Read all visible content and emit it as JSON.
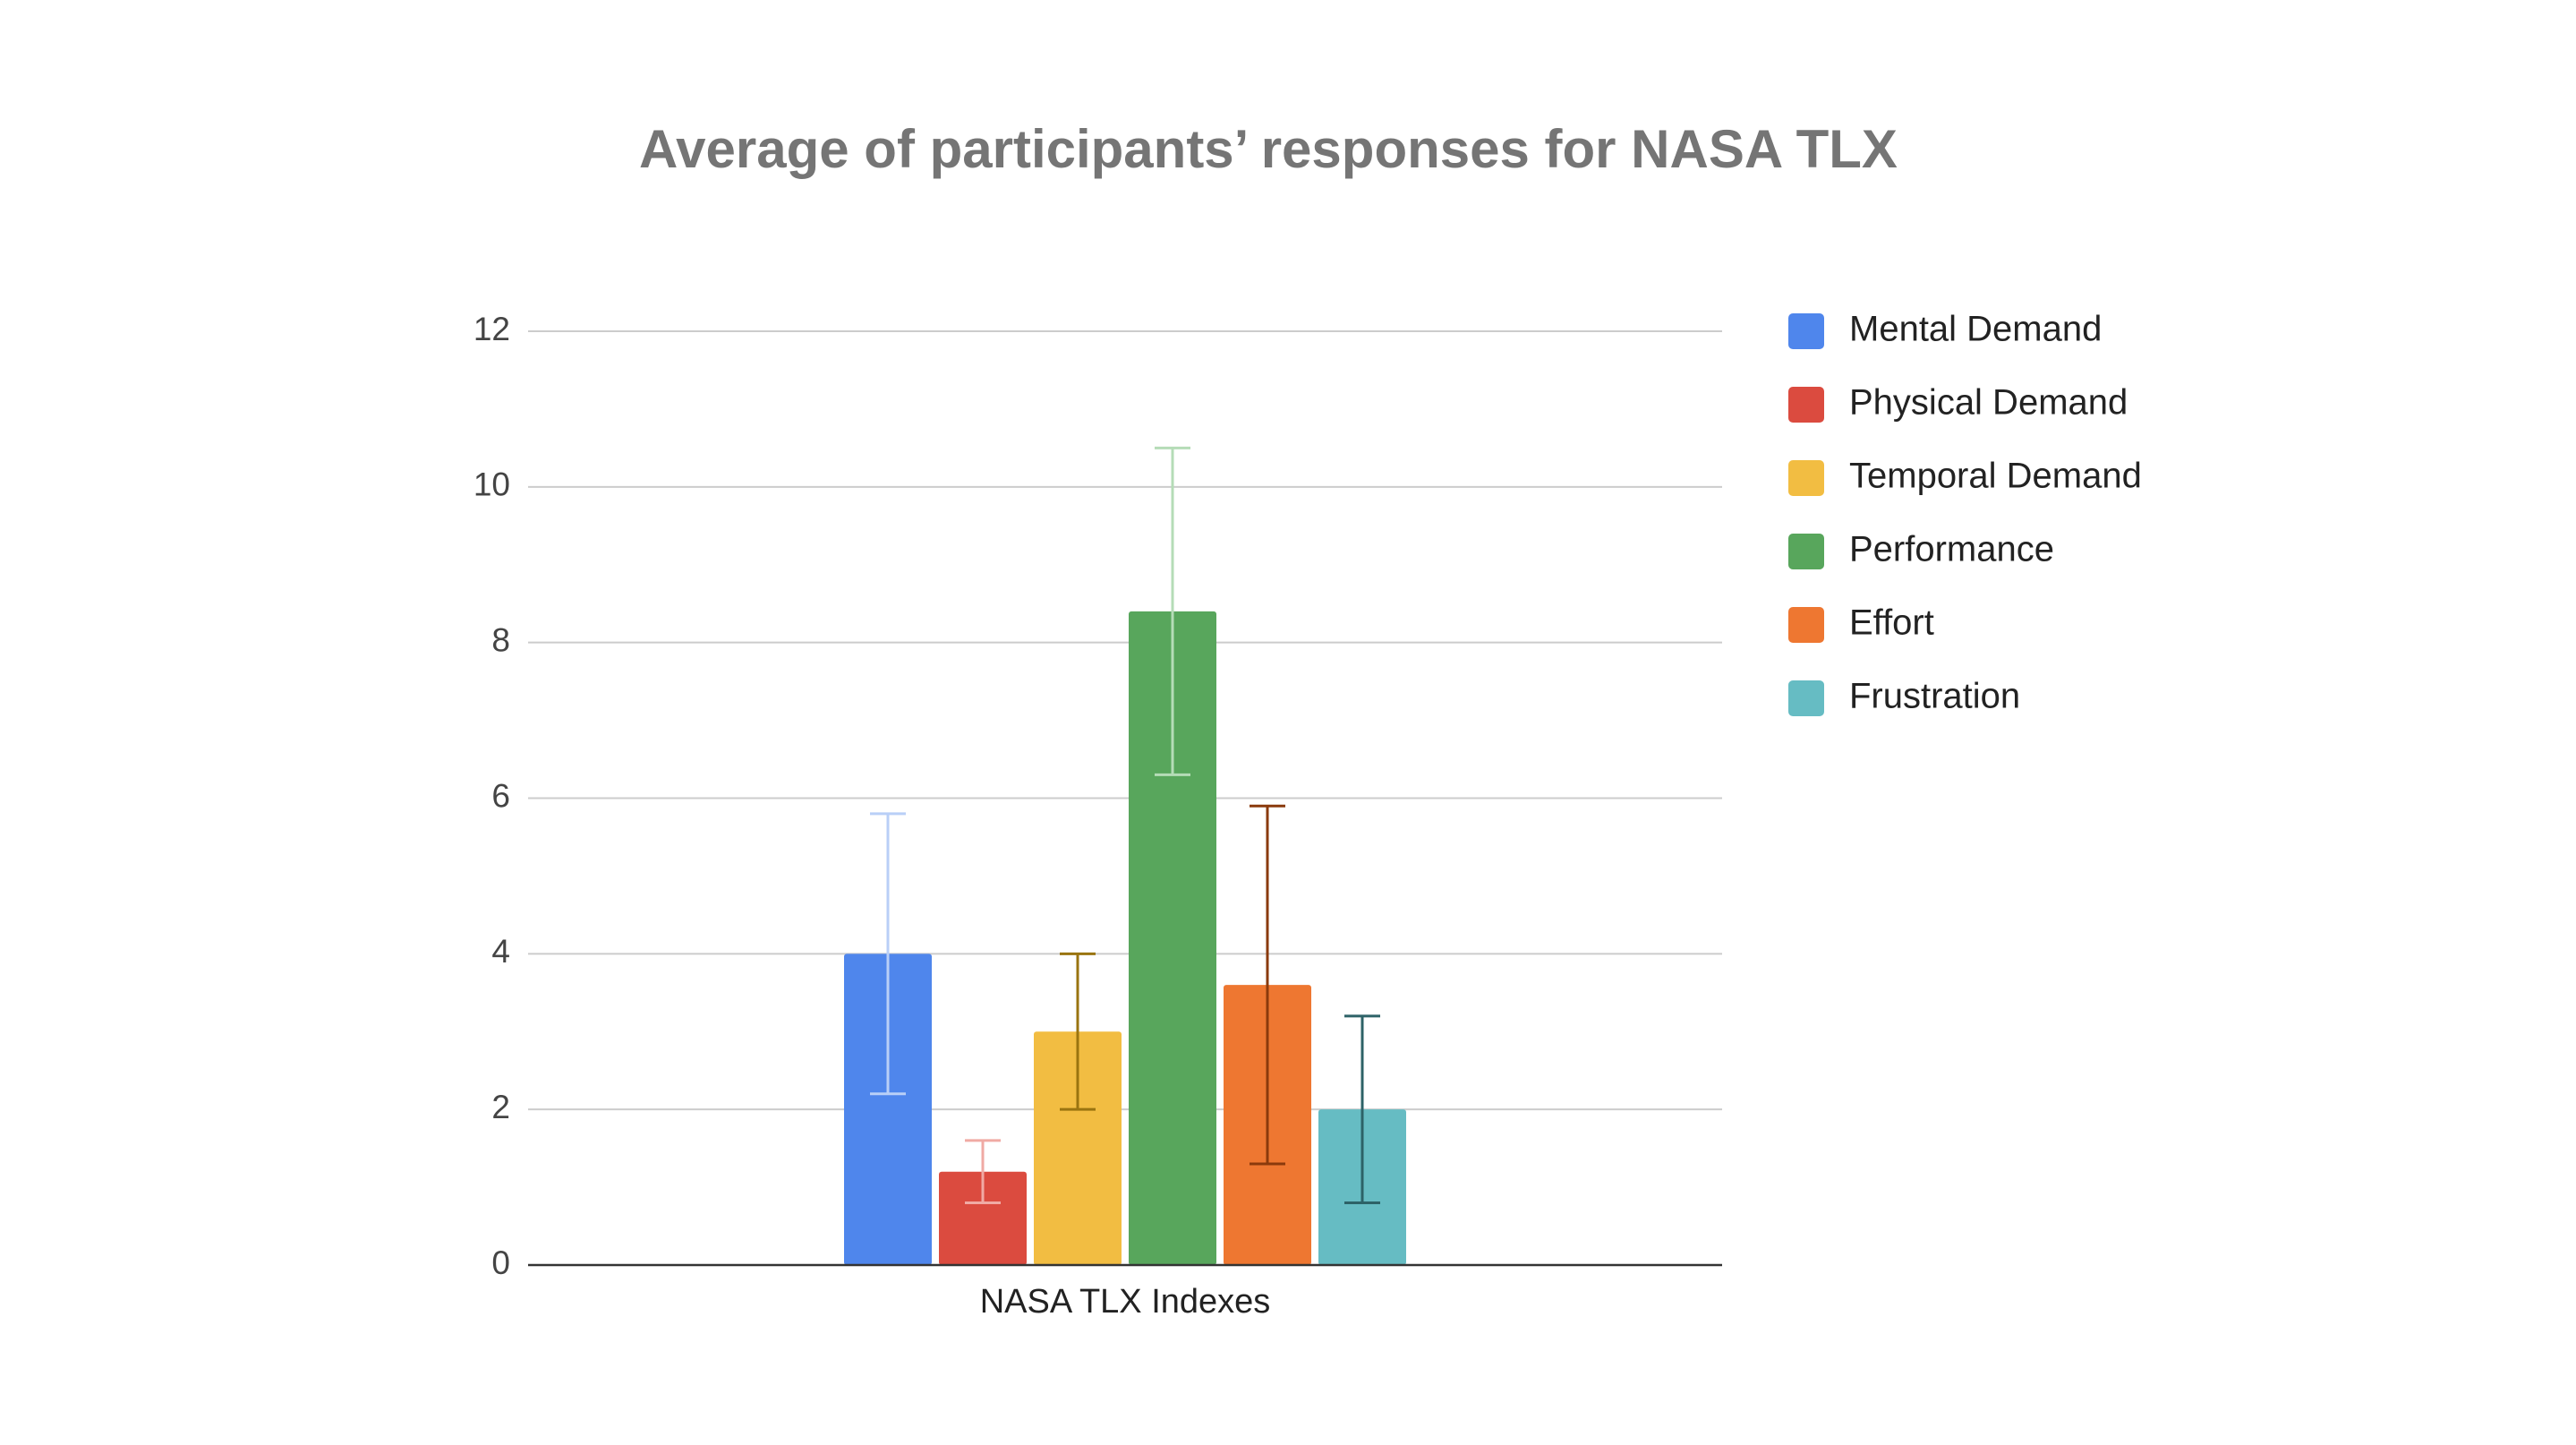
{
  "chart_data": {
    "type": "bar",
    "title": "Average of participants’ responses for NASA TLX",
    "categories": [
      "NASA TLX Indexes"
    ],
    "series": [
      {
        "name": "Mental Demand",
        "color": "#4f86ec",
        "error_color": "#b9cff7",
        "values": [
          4.0
        ],
        "errors": [
          1.8
        ]
      },
      {
        "name": "Physical Demand",
        "color": "#db4b3f",
        "error_color": "#f0aaa4",
        "values": [
          1.2
        ],
        "errors": [
          0.4
        ]
      },
      {
        "name": "Temporal Demand",
        "color": "#f2bd42",
        "error_color": "#9a7410",
        "values": [
          3.0
        ],
        "errors": [
          1.0
        ]
      },
      {
        "name": "Performance",
        "color": "#58a65c",
        "error_color": "#b5dcb7",
        "values": [
          8.4
        ],
        "errors": [
          2.1
        ]
      },
      {
        "name": "Effort",
        "color": "#ee7731",
        "error_color": "#8a3a0c",
        "values": [
          3.6
        ],
        "errors": [
          2.3
        ]
      },
      {
        "name": "Frustration",
        "color": "#66bcc3",
        "error_color": "#2d6267",
        "values": [
          2.0
        ],
        "errors": [
          1.2
        ]
      }
    ],
    "ylim": [
      0,
      12
    ],
    "yticks": [
      0,
      2,
      4,
      6,
      8,
      10,
      12
    ],
    "grid": true,
    "legend": "right"
  }
}
